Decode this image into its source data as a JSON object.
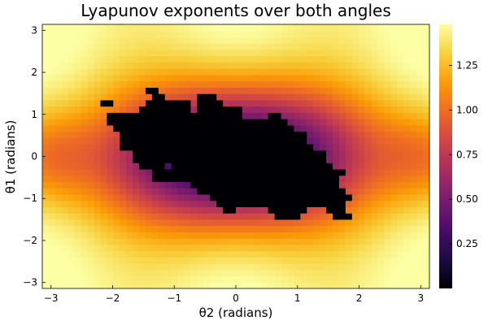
{
  "chart_data": {
    "type": "heatmap",
    "title": "Lyapunov exponents over both angles",
    "xlabel": "θ2 (radians)",
    "ylabel": "θ1 (radians)",
    "xlim": [
      -3.1416,
      3.1416
    ],
    "ylim": [
      -3.1416,
      3.1416
    ],
    "x_ticks": [
      -3,
      -2,
      -1,
      0,
      1,
      2,
      3
    ],
    "x_tick_labels": [
      "−3",
      "−2",
      "−1",
      "0",
      "1",
      "2",
      "3"
    ],
    "y_ticks": [
      -3,
      -2,
      -1,
      0,
      1,
      2,
      3
    ],
    "y_tick_labels": [
      "−3",
      "−2",
      "−1",
      "0",
      "1",
      "2",
      "3"
    ],
    "colorbar": {
      "colormap": "inferno",
      "range": [
        0.0,
        1.48
      ],
      "ticks": [
        0.25,
        0.5,
        0.75,
        1.0,
        1.25
      ],
      "tick_labels": [
        "0.25",
        "0.50",
        "0.75",
        "1.00",
        "1.25"
      ]
    },
    "field_description": "value rises with distance from the origin; ring-shaped structure, maximum near the x = ±2, y = ±2 corners; chaotic black (≈0) region in the centre",
    "chaotic_region_value": 0.0,
    "grid": false,
    "colormap_stops": [
      "#000004",
      "#1b0c41",
      "#4a0c6b",
      "#781c6d",
      "#a52c60",
      "#cf4446",
      "#ed6925",
      "#fb9b06",
      "#f7d13d",
      "#fcffa4"
    ]
  }
}
